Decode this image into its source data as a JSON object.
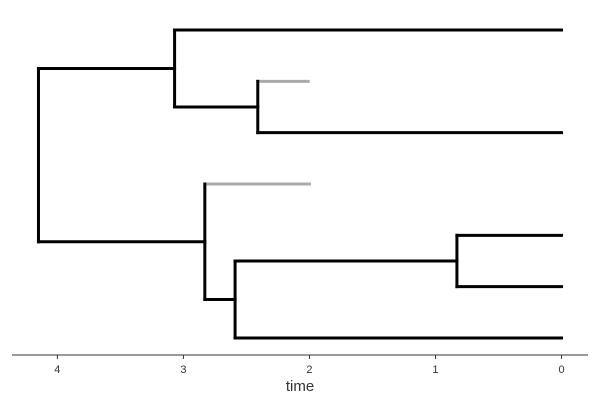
{
  "chart_data": {
    "type": "tree",
    "x_label": "time",
    "xlim": [
      4.36,
      -0.21
    ],
    "xticks": [
      4,
      3,
      2,
      1,
      0
    ],
    "color": "#000000",
    "extinct_color": "#aaaaaa",
    "tree": {
      "time": 4.15,
      "children": [
        {
          "time": 3.07,
          "children": [
            {
              "time": 0
            },
            {
              "time": 2.41,
              "children": [
                {
                  "time": 2.01,
                  "extinct": true
                },
                {
                  "time": 0
                }
              ]
            }
          ]
        },
        {
          "time": 2.83,
          "children": [
            {
              "time": 2.0,
              "extinct": true
            },
            {
              "time": 2.59,
              "children": [
                {
                  "time": 0.83,
                  "children": [
                    {
                      "time": 0
                    },
                    {
                      "time": 0
                    }
                  ]
                },
                {
                  "time": 0
                }
              ]
            }
          ]
        }
      ]
    }
  }
}
